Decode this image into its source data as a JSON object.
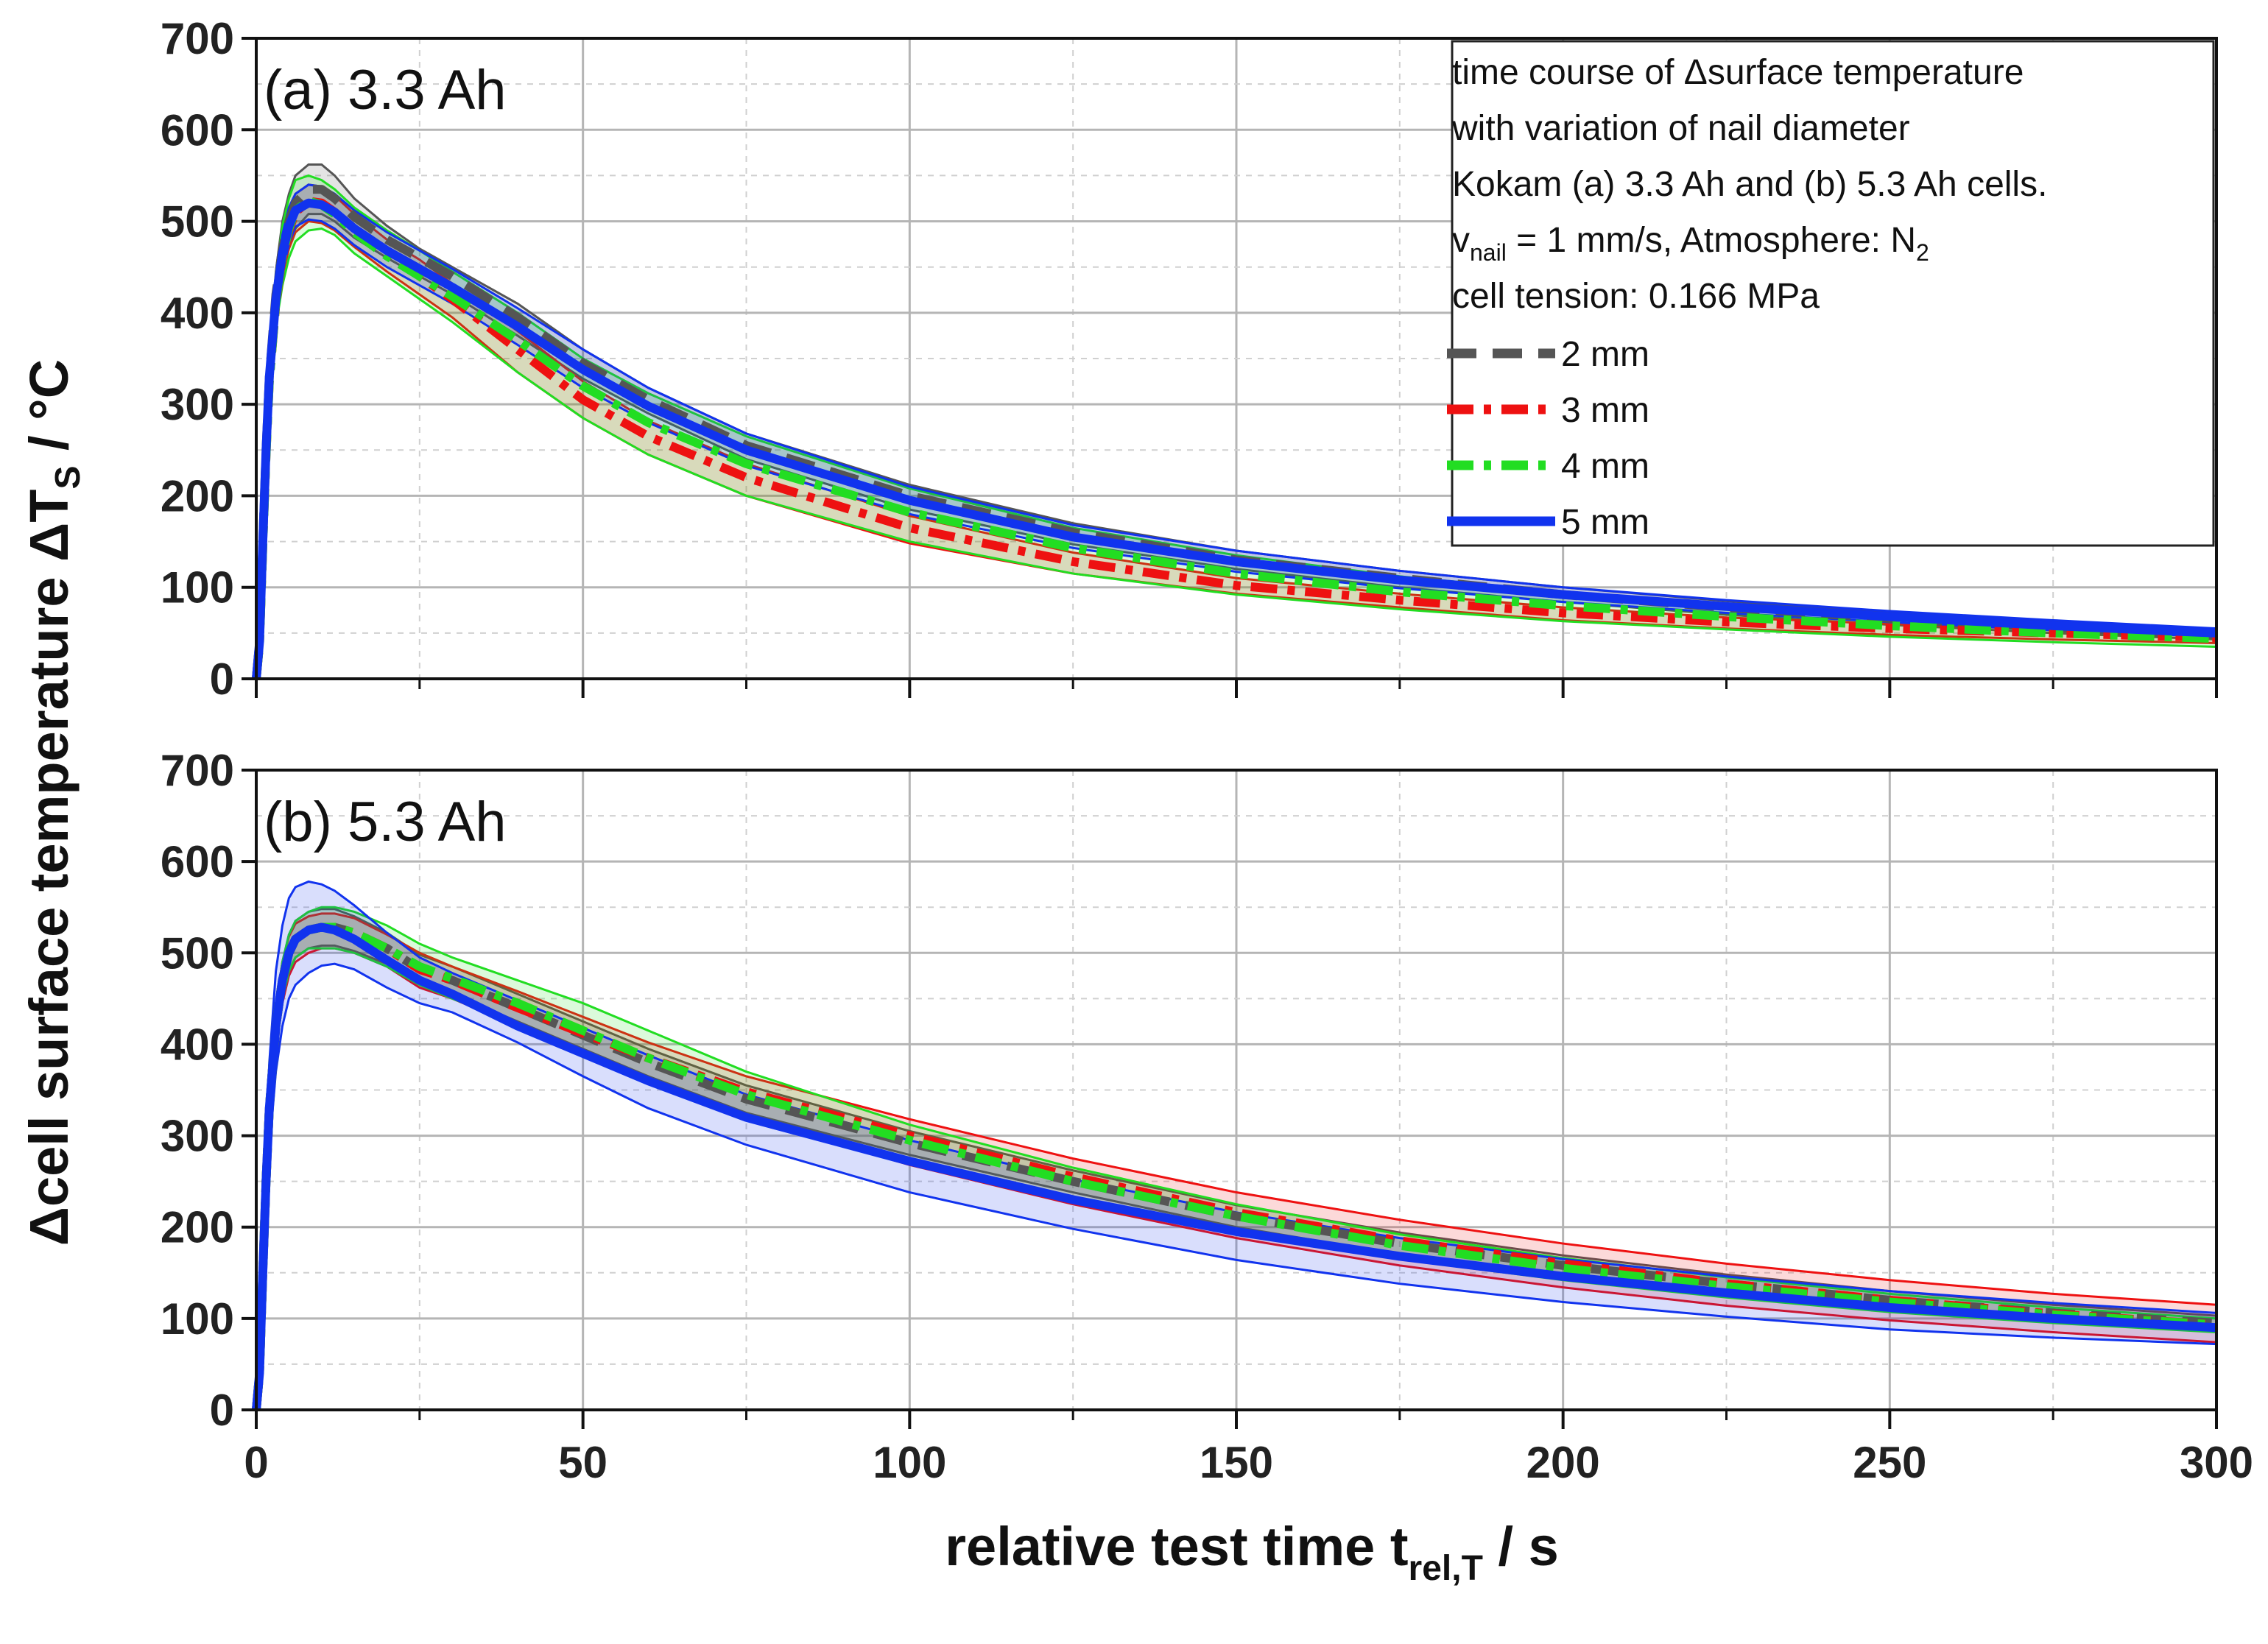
{
  "chart_data": [
    {
      "panel": "a",
      "type": "line",
      "title": "(a) 3.3 Ah",
      "xlabel": "",
      "ylabel": "",
      "xlim": [
        0,
        300
      ],
      "ylim": [
        0,
        700
      ],
      "xticks": [
        0,
        50,
        100,
        150,
        200,
        250,
        300
      ],
      "yticks": [
        0,
        100,
        200,
        300,
        400,
        500,
        600,
        700
      ],
      "grid": true,
      "x": [
        0,
        0.5,
        1,
        1.5,
        2,
        3,
        4,
        5,
        6,
        8,
        10,
        12,
        15,
        20,
        25,
        30,
        40,
        50,
        60,
        75,
        100,
        125,
        150,
        175,
        200,
        225,
        250,
        275,
        300
      ],
      "series": [
        {
          "name": "2 mm",
          "color": "#555555",
          "style": "dash",
          "values": [
            0,
            40,
            150,
            250,
            330,
            420,
            470,
            500,
            520,
            535,
            535,
            525,
            505,
            480,
            460,
            440,
            395,
            345,
            305,
            255,
            200,
            160,
            130,
            110,
            92,
            78,
            66,
            56,
            48
          ],
          "band_upper": [
            0,
            45,
            160,
            265,
            350,
            445,
            500,
            530,
            550,
            562,
            562,
            550,
            525,
            495,
            470,
            450,
            410,
            360,
            318,
            268,
            212,
            170,
            140,
            118,
            100,
            85,
            72,
            62,
            52
          ],
          "band_lower": [
            0,
            35,
            140,
            235,
            310,
            400,
            445,
            475,
            492,
            508,
            508,
            500,
            482,
            460,
            440,
            420,
            375,
            328,
            290,
            240,
            185,
            147,
            120,
            100,
            84,
            70,
            59,
            50,
            43
          ]
        },
        {
          "name": "3 mm",
          "color": "#ee1111",
          "style": "dashdot",
          "values": [
            0,
            38,
            145,
            245,
            325,
            410,
            460,
            490,
            510,
            522,
            520,
            510,
            492,
            465,
            440,
            415,
            360,
            305,
            265,
            220,
            165,
            128,
            102,
            86,
            72,
            62,
            55,
            50,
            45
          ],
          "band_upper": [
            0,
            42,
            155,
            260,
            345,
            430,
            485,
            515,
            530,
            540,
            538,
            528,
            508,
            480,
            458,
            432,
            380,
            325,
            282,
            235,
            178,
            138,
            110,
            93,
            78,
            67,
            60,
            54,
            48
          ],
          "band_lower": [
            0,
            34,
            135,
            230,
            305,
            390,
            440,
            470,
            488,
            500,
            498,
            490,
            472,
            445,
            420,
            395,
            335,
            285,
            245,
            200,
            148,
            115,
            93,
            78,
            64,
            55,
            48,
            43,
            39
          ]
        },
        {
          "name": "4 mm",
          "color": "#22dd22",
          "style": "dashdot",
          "values": [
            0,
            38,
            145,
            245,
            325,
            412,
            462,
            492,
            512,
            522,
            518,
            508,
            488,
            462,
            440,
            418,
            370,
            320,
            280,
            235,
            182,
            143,
            115,
            95,
            80,
            68,
            58,
            50,
            44
          ],
          "band_upper": [
            0,
            44,
            158,
            265,
            352,
            440,
            495,
            525,
            545,
            550,
            545,
            535,
            515,
            490,
            468,
            445,
            400,
            350,
            312,
            265,
            208,
            165,
            135,
            112,
            95,
            81,
            70,
            60,
            52
          ],
          "band_lower": [
            0,
            32,
            130,
            225,
            300,
            385,
            430,
            460,
            478,
            490,
            492,
            485,
            465,
            440,
            415,
            390,
            335,
            285,
            245,
            200,
            150,
            115,
            92,
            76,
            63,
            54,
            46,
            40,
            35
          ]
        },
        {
          "name": "5 mm",
          "color": "#1133ee",
          "style": "solid",
          "values": [
            0,
            40,
            150,
            250,
            330,
            415,
            465,
            495,
            512,
            520,
            518,
            510,
            492,
            468,
            448,
            428,
            385,
            338,
            298,
            250,
            195,
            155,
            128,
            108,
            92,
            79,
            68,
            58,
            50
          ],
          "band_upper": [
            0,
            44,
            160,
            262,
            345,
            432,
            485,
            515,
            530,
            540,
            538,
            530,
            512,
            488,
            468,
            448,
            405,
            360,
            318,
            268,
            210,
            168,
            140,
            118,
            100,
            86,
            74,
            64,
            55
          ],
          "band_lower": [
            0,
            36,
            140,
            238,
            315,
            398,
            445,
            475,
            494,
            502,
            500,
            492,
            474,
            450,
            430,
            410,
            365,
            318,
            280,
            233,
            180,
            143,
            117,
            99,
            84,
            72,
            62,
            53,
            46
          ]
        }
      ]
    },
    {
      "panel": "b",
      "type": "line",
      "title": "(b) 5.3 Ah",
      "xlabel": "",
      "ylabel": "",
      "xlim": [
        0,
        300
      ],
      "ylim": [
        0,
        700
      ],
      "xticks": [
        0,
        50,
        100,
        150,
        200,
        250,
        300
      ],
      "yticks": [
        0,
        100,
        200,
        300,
        400,
        500,
        600,
        700
      ],
      "grid": true,
      "x": [
        0,
        0.5,
        1,
        1.5,
        2,
        3,
        4,
        5,
        6,
        8,
        10,
        12,
        15,
        20,
        25,
        30,
        40,
        50,
        60,
        75,
        100,
        125,
        150,
        175,
        200,
        225,
        250,
        275,
        300
      ],
      "series": [
        {
          "name": "2 mm",
          "color": "#555555",
          "style": "dash",
          "values": [
            0,
            40,
            150,
            250,
            330,
            420,
            470,
            500,
            515,
            525,
            528,
            528,
            522,
            505,
            482,
            470,
            440,
            410,
            380,
            340,
            292,
            250,
            212,
            182,
            158,
            138,
            120,
            106,
            95
          ],
          "band_upper": [
            0,
            44,
            160,
            265,
            350,
            440,
            490,
            520,
            535,
            545,
            548,
            548,
            540,
            522,
            498,
            485,
            455,
            425,
            395,
            355,
            305,
            262,
            224,
            194,
            169,
            148,
            130,
            115,
            103
          ],
          "band_lower": [
            0,
            36,
            140,
            235,
            310,
            400,
            450,
            480,
            495,
            505,
            508,
            508,
            502,
            488,
            466,
            455,
            425,
            395,
            365,
            325,
            279,
            238,
            200,
            170,
            147,
            128,
            110,
            97,
            87
          ]
        },
        {
          "name": "3 mm",
          "color": "#ee1111",
          "style": "dashdot",
          "values": [
            0,
            40,
            150,
            250,
            330,
            420,
            470,
            500,
            515,
            525,
            528,
            528,
            522,
            505,
            482,
            470,
            440,
            412,
            385,
            348,
            300,
            255,
            216,
            185,
            160,
            138,
            120,
            105,
            93
          ],
          "band_upper": [
            0,
            44,
            160,
            265,
            350,
            440,
            490,
            518,
            532,
            540,
            543,
            543,
            538,
            520,
            500,
            485,
            458,
            430,
            402,
            365,
            318,
            275,
            238,
            208,
            182,
            160,
            142,
            127,
            115
          ],
          "band_lower": [
            0,
            34,
            135,
            230,
            305,
            395,
            445,
            475,
            490,
            500,
            505,
            505,
            500,
            485,
            462,
            450,
            420,
            390,
            360,
            320,
            268,
            225,
            188,
            158,
            134,
            114,
            98,
            85,
            74
          ]
        },
        {
          "name": "4 mm",
          "color": "#22dd22",
          "style": "dashdot",
          "values": [
            0,
            40,
            150,
            250,
            330,
            420,
            470,
            500,
            515,
            525,
            528,
            528,
            522,
            505,
            485,
            472,
            445,
            415,
            385,
            345,
            295,
            250,
            212,
            180,
            155,
            135,
            118,
            104,
            93
          ],
          "band_upper": [
            0,
            44,
            160,
            265,
            350,
            440,
            490,
            520,
            535,
            545,
            550,
            550,
            545,
            530,
            510,
            495,
            470,
            445,
            415,
            370,
            312,
            265,
            225,
            192,
            166,
            145,
            127,
            112,
            100
          ],
          "band_lower": [
            0,
            36,
            140,
            235,
            310,
            400,
            450,
            480,
            495,
            505,
            505,
            505,
            500,
            485,
            465,
            450,
            422,
            392,
            360,
            320,
            270,
            228,
            193,
            165,
            142,
            123,
            107,
            95,
            85
          ]
        },
        {
          "name": "5 mm",
          "color": "#1133ee",
          "style": "solid",
          "values": [
            0,
            40,
            150,
            250,
            330,
            420,
            470,
            500,
            515,
            525,
            528,
            525,
            515,
            492,
            470,
            455,
            420,
            390,
            360,
            320,
            272,
            230,
            195,
            168,
            146,
            128,
            112,
            100,
            90
          ],
          "band_upper": [
            0,
            50,
            175,
            290,
            380,
            480,
            530,
            560,
            572,
            578,
            575,
            568,
            552,
            522,
            495,
            478,
            448,
            418,
            388,
            345,
            295,
            252,
            216,
            188,
            165,
            146,
            130,
            117,
            106
          ],
          "band_lower": [
            0,
            32,
            130,
            215,
            285,
            370,
            420,
            450,
            465,
            478,
            486,
            488,
            482,
            462,
            445,
            435,
            402,
            365,
            330,
            290,
            238,
            198,
            164,
            138,
            118,
            102,
            88,
            79,
            72
          ]
        }
      ]
    }
  ],
  "shared": {
    "ylabel_main": "Δcell surface temperature ΔT",
    "ylabel_sub": "S",
    "ylabel_unit": " / °C",
    "xlabel_main": "relative test time t",
    "xlabel_sub": "rel,T",
    "xlabel_unit": " / s"
  },
  "legend": {
    "lines": [
      "time course of Δsurface temperature",
      "with variation of nail diameter",
      "Kokam (a) 3.3 Ah and (b) 5.3 Ah cells."
    ],
    "vnail_prefix": "v",
    "vnail_sub": "nail",
    "vnail_rest": " = 1 mm/s, Atmosphere: N",
    "vnail_n2sub": "2",
    "tension": "cell tension: 0.166 MPa",
    "entries": [
      "2 mm",
      "3 mm",
      "4 mm",
      "5 mm"
    ]
  }
}
